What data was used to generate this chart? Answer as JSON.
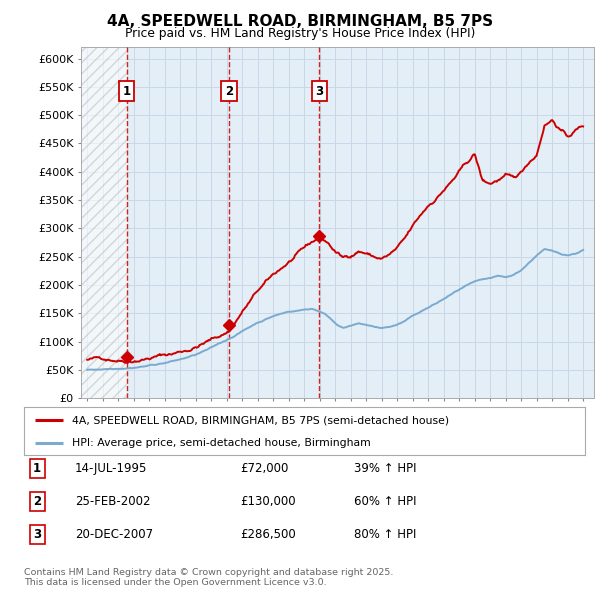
{
  "title": "4A, SPEEDWELL ROAD, BIRMINGHAM, B5 7PS",
  "subtitle": "Price paid vs. HM Land Registry's House Price Index (HPI)",
  "ylim": [
    0,
    620000
  ],
  "yticks": [
    0,
    50000,
    100000,
    150000,
    200000,
    250000,
    300000,
    350000,
    400000,
    450000,
    500000,
    550000,
    600000
  ],
  "ytick_labels": [
    "£0",
    "£50K",
    "£100K",
    "£150K",
    "£200K",
    "£250K",
    "£300K",
    "£350K",
    "£400K",
    "£450K",
    "£500K",
    "£550K",
    "£600K"
  ],
  "xlim_start": 1992.6,
  "xlim_end": 2025.7,
  "purchases": [
    {
      "year": 1995.54,
      "price": 72000,
      "label": "1",
      "hpi_pct": "39% ↑ HPI",
      "date": "14-JUL-1995",
      "price_str": "£72,000"
    },
    {
      "year": 2002.15,
      "price": 130000,
      "label": "2",
      "hpi_pct": "60% ↑ HPI",
      "date": "25-FEB-2002",
      "price_str": "£130,000"
    },
    {
      "year": 2007.97,
      "price": 286500,
      "label": "3",
      "hpi_pct": "80% ↑ HPI",
      "date": "20-DEC-2007",
      "price_str": "£286,500"
    }
  ],
  "red_line_color": "#CC0000",
  "blue_line_color": "#7AAAD0",
  "hatch_color": "#BBBBBB",
  "grid_color": "#C8D8E8",
  "background_color": "#FFFFFF",
  "plot_bg_color": "#E4EEF6",
  "legend_line1": "4A, SPEEDWELL ROAD, BIRMINGHAM, B5 7PS (semi-detached house)",
  "legend_line2": "HPI: Average price, semi-detached house, Birmingham",
  "footnote": "Contains HM Land Registry data © Crown copyright and database right 2025.\nThis data is licensed under the Open Government Licence v3.0."
}
